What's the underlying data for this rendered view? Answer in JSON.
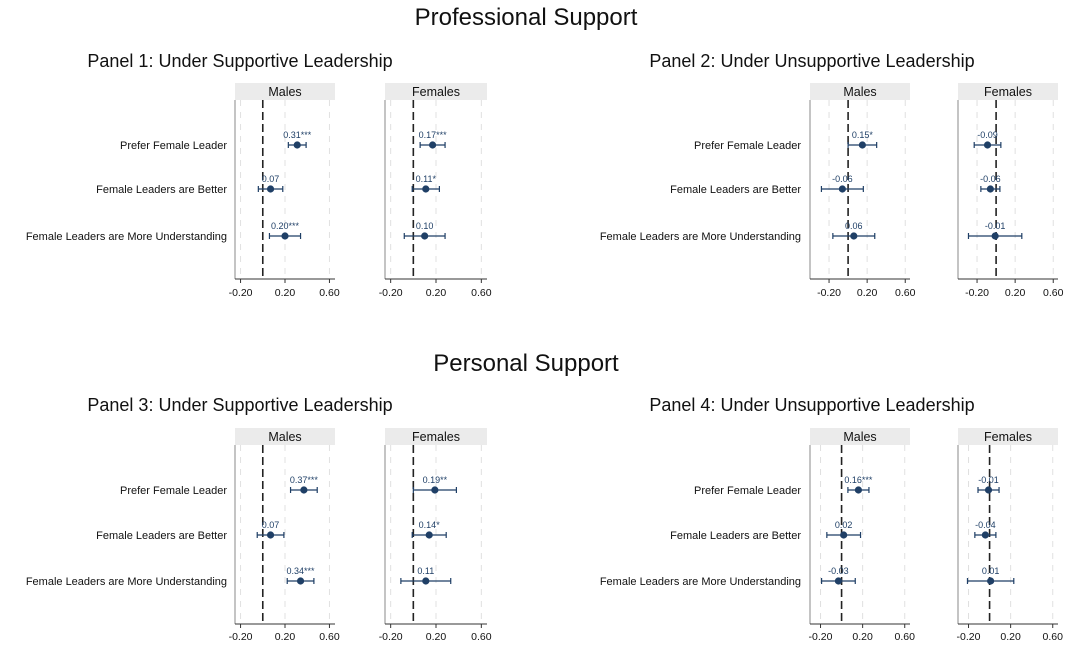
{
  "sections": [
    {
      "title": "Professional Support"
    },
    {
      "title": "Personal Support"
    }
  ],
  "colors": {
    "marker": "#1f3f66",
    "strip": "#ebebeb",
    "grid": "#e0e0e0",
    "axis": "#333333"
  },
  "chart_data": [
    {
      "type": "scatter",
      "title": "Panel 1: Under Supportive Leadership",
      "section": "Professional Support",
      "rows": [
        "Prefer Female Leader",
        "Female Leaders are Better",
        "Female Leaders are More Understanding"
      ],
      "xlim": [
        -0.25,
        0.65
      ],
      "xticks": [
        "-0.20",
        "0.20",
        "0.60"
      ],
      "facets": [
        {
          "name": "Males",
          "points": [
            {
              "value": 0.31,
              "ci": [
                0.23,
                0.39
              ],
              "label": "0.31***"
            },
            {
              "value": 0.07,
              "ci": [
                -0.04,
                0.18
              ],
              "label": "0.07"
            },
            {
              "value": 0.2,
              "ci": [
                0.06,
                0.34
              ],
              "label": "0.20***"
            }
          ]
        },
        {
          "name": "Females",
          "points": [
            {
              "value": 0.17,
              "ci": [
                0.06,
                0.28
              ],
              "label": "0.17***"
            },
            {
              "value": 0.11,
              "ci": [
                -0.01,
                0.23
              ],
              "label": "0.11*"
            },
            {
              "value": 0.1,
              "ci": [
                -0.08,
                0.28
              ],
              "label": "0.10"
            }
          ]
        }
      ]
    },
    {
      "type": "scatter",
      "title": "Panel 2: Under Unsupportive Leadership",
      "section": "Professional Support",
      "rows": [
        "Prefer Female Leader",
        "Female Leaders are Better",
        "Female Leaders are More Understanding"
      ],
      "xlim": [
        -0.4,
        0.65
      ],
      "xticks": [
        "-0.20",
        "0.20",
        "0.60"
      ],
      "facets": [
        {
          "name": "Males",
          "points": [
            {
              "value": 0.15,
              "ci": [
                0.0,
                0.3
              ],
              "label": "0.15*"
            },
            {
              "value": -0.06,
              "ci": [
                -0.28,
                0.16
              ],
              "label": "-0.06"
            },
            {
              "value": 0.06,
              "ci": [
                -0.16,
                0.28
              ],
              "label": "0.06"
            }
          ]
        },
        {
          "name": "Females",
          "points": [
            {
              "value": -0.09,
              "ci": [
                -0.23,
                0.05
              ],
              "label": "-0.09"
            },
            {
              "value": -0.06,
              "ci": [
                -0.16,
                0.04
              ],
              "label": "-0.06"
            },
            {
              "value": -0.01,
              "ci": [
                -0.29,
                0.27
              ],
              "label": "-0.01"
            }
          ]
        }
      ]
    },
    {
      "type": "scatter",
      "title": "Panel 3: Under Supportive Leadership",
      "section": "Personal Support",
      "rows": [
        "Prefer Female Leader",
        "Female Leaders are Better",
        "Female Leaders are More Understanding"
      ],
      "xlim": [
        -0.25,
        0.65
      ],
      "xticks": [
        "-0.20",
        "0.20",
        "0.60"
      ],
      "facets": [
        {
          "name": "Males",
          "points": [
            {
              "value": 0.37,
              "ci": [
                0.25,
                0.49
              ],
              "label": "0.37***"
            },
            {
              "value": 0.07,
              "ci": [
                -0.05,
                0.19
              ],
              "label": "0.07"
            },
            {
              "value": 0.34,
              "ci": [
                0.22,
                0.46
              ],
              "label": "0.34***"
            }
          ]
        },
        {
          "name": "Females",
          "points": [
            {
              "value": 0.19,
              "ci": [
                0.0,
                0.38
              ],
              "label": "0.19**"
            },
            {
              "value": 0.14,
              "ci": [
                -0.01,
                0.29
              ],
              "label": "0.14*"
            },
            {
              "value": 0.11,
              "ci": [
                -0.11,
                0.33
              ],
              "label": "0.11"
            }
          ]
        }
      ]
    },
    {
      "type": "scatter",
      "title": "Panel 4: Under Unsupportive Leadership",
      "section": "Personal Support",
      "rows": [
        "Prefer Female Leader",
        "Female Leaders are Better",
        "Female Leaders are More Understanding"
      ],
      "xlim": [
        -0.3,
        0.65
      ],
      "xticks": [
        "-0.20",
        "0.20",
        "0.60"
      ],
      "facets": [
        {
          "name": "Males",
          "points": [
            {
              "value": 0.16,
              "ci": [
                0.06,
                0.26
              ],
              "label": "0.16***"
            },
            {
              "value": 0.02,
              "ci": [
                -0.14,
                0.18
              ],
              "label": "0.02"
            },
            {
              "value": -0.03,
              "ci": [
                -0.19,
                0.13
              ],
              "label": "-0.03"
            }
          ]
        },
        {
          "name": "Females",
          "points": [
            {
              "value": -0.01,
              "ci": [
                -0.11,
                0.09
              ],
              "label": "-0.01"
            },
            {
              "value": -0.04,
              "ci": [
                -0.14,
                0.06
              ],
              "label": "-0.04"
            },
            {
              "value": 0.01,
              "ci": [
                -0.21,
                0.23
              ],
              "label": "0.01"
            }
          ]
        }
      ]
    }
  ]
}
